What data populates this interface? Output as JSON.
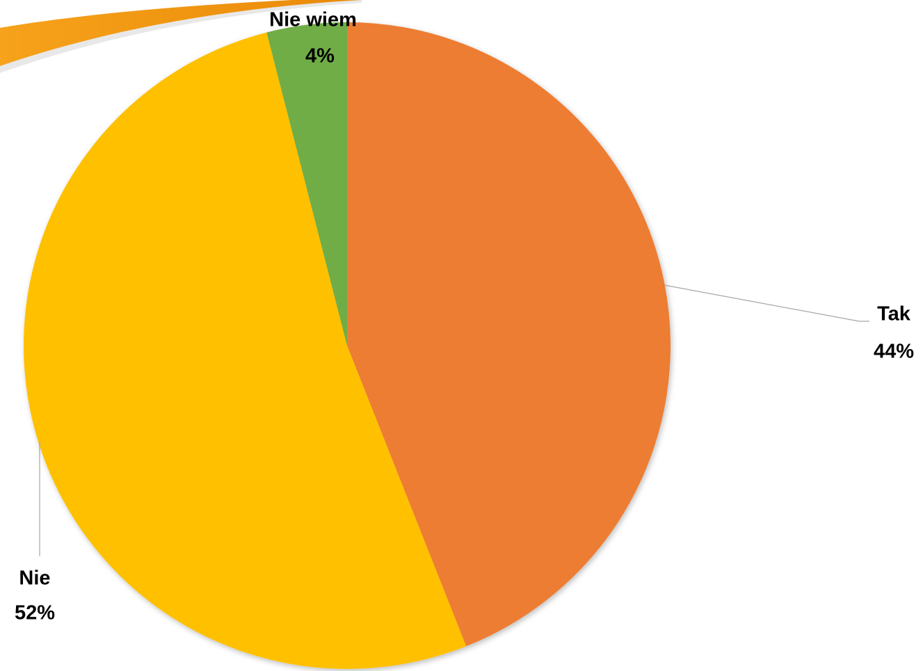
{
  "chart_data": {
    "type": "pie",
    "categories": [
      "Tak",
      "Nie",
      "Nie wiem"
    ],
    "values": [
      44,
      52,
      4
    ],
    "value_labels": [
      "44%",
      "52%",
      "4%"
    ],
    "colors": [
      "#ED7D31",
      "#FFC000",
      "#70AD47"
    ]
  }
}
